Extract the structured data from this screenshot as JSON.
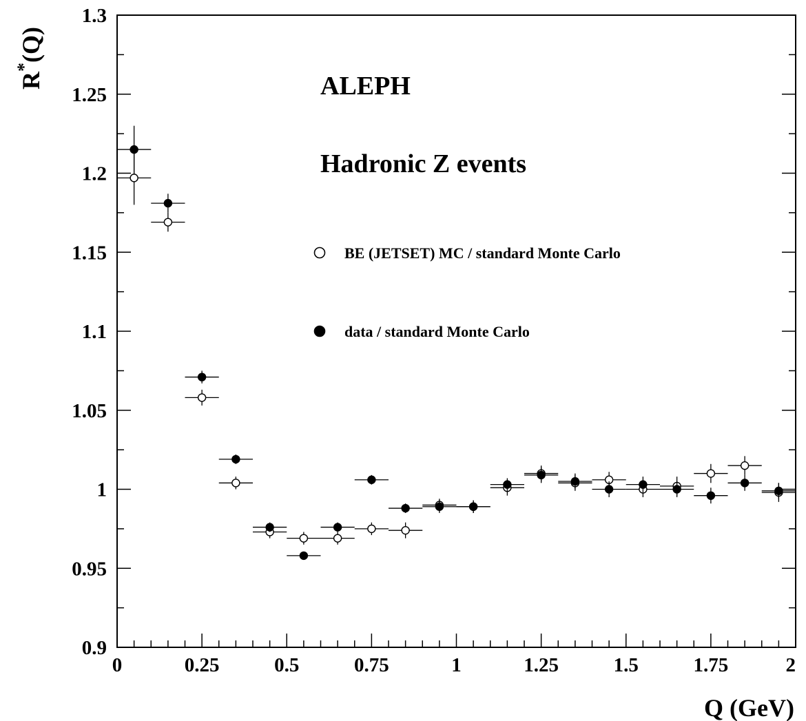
{
  "chart_data": {
    "type": "scatter",
    "title": "",
    "xlabel": "Q (GeV)",
    "ylabel": "R*(Q)",
    "ylabel_main": "R",
    "ylabel_sup": "*",
    "ylabel_rest": "(Q)",
    "xlim": [
      0,
      2
    ],
    "ylim": [
      0.9,
      1.3
    ],
    "x_ticks": [
      {
        "value": 0,
        "label": "0"
      },
      {
        "value": 0.25,
        "label": "0.25"
      },
      {
        "value": 0.5,
        "label": "0.5"
      },
      {
        "value": 0.75,
        "label": "0.75"
      },
      {
        "value": 1,
        "label": "1"
      },
      {
        "value": 1.25,
        "label": "1.25"
      },
      {
        "value": 1.5,
        "label": "1.5"
      },
      {
        "value": 1.75,
        "label": "1.75"
      },
      {
        "value": 2,
        "label": "2"
      }
    ],
    "y_ticks": [
      {
        "value": 0.9,
        "label": "0.9"
      },
      {
        "value": 0.95,
        "label": "0.95"
      },
      {
        "value": 1,
        "label": "1"
      },
      {
        "value": 1.05,
        "label": "1.05"
      },
      {
        "value": 1.1,
        "label": "1.1"
      },
      {
        "value": 1.15,
        "label": "1.15"
      },
      {
        "value": 1.2,
        "label": "1.2"
      },
      {
        "value": 1.25,
        "label": "1.25"
      },
      {
        "value": 1.3,
        "label": "1.3"
      }
    ],
    "annotations": [
      "ALEPH",
      "Hadronic Z events"
    ],
    "legend_position": "upper-middle",
    "x_bin_halfwidth": 0.05,
    "series": [
      {
        "name": "BE (JETSET) MC / standard Monte Carlo",
        "marker": "open-circle",
        "x": [
          0.05,
          0.15,
          0.25,
          0.35,
          0.45,
          0.55,
          0.65,
          0.75,
          0.85,
          0.95,
          1.05,
          1.15,
          1.25,
          1.35,
          1.45,
          1.55,
          1.65,
          1.75,
          1.85,
          1.95
        ],
        "y": [
          1.197,
          1.169,
          1.058,
          1.004,
          0.973,
          0.969,
          0.969,
          0.975,
          0.974,
          0.99,
          0.989,
          1.001,
          1.01,
          1.004,
          1.006,
          1.0,
          1.002,
          1.01,
          1.015,
          0.998
        ],
        "yerr": [
          0.017,
          0.006,
          0.005,
          0.004,
          0.004,
          0.004,
          0.004,
          0.004,
          0.005,
          0.004,
          0.004,
          0.005,
          0.005,
          0.005,
          0.005,
          0.005,
          0.006,
          0.006,
          0.006,
          0.006
        ]
      },
      {
        "name": "data / standard Monte Carlo",
        "marker": "filled-circle",
        "x": [
          0.05,
          0.15,
          0.25,
          0.35,
          0.45,
          0.55,
          0.65,
          0.75,
          0.85,
          0.95,
          1.05,
          1.15,
          1.25,
          1.35,
          1.45,
          1.55,
          1.65,
          1.75,
          1.85,
          1.95
        ],
        "y": [
          1.215,
          1.181,
          1.071,
          1.019,
          0.976,
          0.958,
          0.976,
          1.006,
          0.988,
          0.989,
          0.989,
          1.003,
          1.009,
          1.005,
          1.0,
          1.003,
          1.0,
          0.996,
          1.004,
          0.999
        ],
        "yerr": [
          0.015,
          0.006,
          0.004,
          0.003,
          0.003,
          0.002,
          0.003,
          0.003,
          0.003,
          0.004,
          0.004,
          0.004,
          0.005,
          0.005,
          0.005,
          0.005,
          0.005,
          0.005,
          0.005,
          0.005
        ]
      }
    ]
  }
}
